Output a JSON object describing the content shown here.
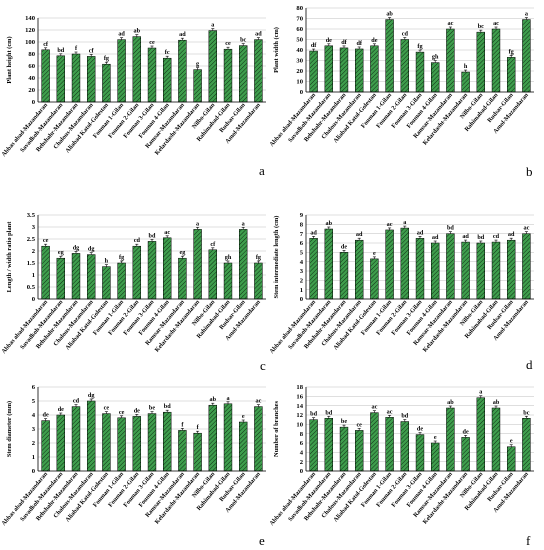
{
  "chart_data": [
    {
      "panel": "a",
      "type": "bar",
      "ylabel": "Plant height (cm)",
      "ylim": [
        0,
        140
      ],
      "yticks": [
        0,
        20,
        40,
        60,
        80,
        100,
        120,
        140
      ],
      "categories": [
        "Abbas abad-Mazandaran",
        "Savadkoh-Mazandaran",
        "Behshahr-Mazandaran",
        "Chalous-Mazandaran",
        "Aliabad Katol-Golestan",
        "Fouman 1-Gilan",
        "Fouman 2-Gilan",
        "Fouman 3-Gilan",
        "Fouman 4-Gilan",
        "Ramsar-Mazandaran",
        "Kelardasht-Mazandaran",
        "Nilbo-Gilan",
        "Rahimabad-Gilan",
        "Rudsar-Gilan",
        "Amol-Mazandaran"
      ],
      "values": [
        87,
        77,
        80,
        76,
        63,
        104,
        109,
        90,
        73,
        103,
        54,
        119,
        88,
        94,
        104
      ],
      "labels": [
        "cf",
        "bd",
        "f",
        "cf",
        "fg",
        "ad",
        "ab",
        "ce",
        "fc",
        "ad",
        "g",
        "a",
        "ce",
        "bc",
        "ad"
      ]
    },
    {
      "panel": "b",
      "type": "bar",
      "ylabel": "Plant width (cm)",
      "ylim": [
        0,
        80
      ],
      "yticks": [
        0,
        10,
        20,
        30,
        40,
        50,
        60,
        70,
        80
      ],
      "categories": [
        "Abbas abad-Mazandaran",
        "Savadkoh-Mazandaran",
        "Behshahr-Mazandaran",
        "Chalous-Mazandaran",
        "Aliabad Katol-Golestan",
        "Fouman 1-Gilan",
        "Fouman 2-Gilan",
        "Fouman 3-Gilan",
        "Fouman 4-Gilan",
        "Ramsar-Mazandaran",
        "Kelardasht-Mazandaran",
        "Nilbo-Gilan",
        "Rahimabad-Gilan",
        "Rudsar-Gilan",
        "Amol-Mazandaran"
      ],
      "values": [
        39,
        44,
        42,
        41,
        44,
        69,
        50,
        38,
        28,
        60,
        19,
        57,
        60,
        33,
        69
      ],
      "labels": [
        "df",
        "de",
        "df",
        "df",
        "de",
        "ab",
        "cd",
        "fg",
        "gh",
        "ac",
        "h",
        "bc",
        "ac",
        "fg",
        "a"
      ]
    },
    {
      "panel": "c",
      "type": "bar",
      "ylabel": "Length / width ratio plant",
      "ylim": [
        0,
        3.5
      ],
      "yticks": [
        0,
        0.5,
        1,
        1.5,
        2,
        2.5,
        3,
        3.5
      ],
      "categories": [
        "Abbas abad-Mazandaran",
        "Savadkoh-Mazandaran",
        "Behshahr-Mazandaran",
        "Chalous-Mazandaran",
        "Aliabad Katol-Golestan",
        "Fouman 1-Gilan",
        "Fouman 2-Gilan",
        "Fouman 3-Gilan",
        "Fouman 4-Gilan",
        "Ramsar-Mazandaran",
        "Kelardasht-Mazandaran",
        "Nilbo-Gilan",
        "Rahimabad-Gilan",
        "Rudsar-Gilan",
        "Amol-Mazandaran"
      ],
      "values": [
        2.2,
        1.7,
        1.9,
        1.85,
        1.35,
        1.5,
        2.2,
        2.4,
        2.55,
        1.7,
        2.9,
        2.05,
        1.5,
        2.9,
        1.5
      ],
      "labels": [
        "ce",
        "eg",
        "dg",
        "dg",
        "h",
        "fg",
        "cd",
        "bd",
        "ac",
        "eg",
        "a",
        "cf",
        "gh",
        "a",
        "fg"
      ]
    },
    {
      "panel": "d",
      "type": "bar",
      "ylabel": "Stem intermediate length (cm)",
      "ylim": [
        0,
        9
      ],
      "yticks": [
        0,
        1,
        2,
        3,
        4,
        5,
        6,
        7,
        8,
        9
      ],
      "categories": [
        "Abbas abad-Mazandaran",
        "Savadkoh-Mazandaran",
        "Behshahr-Mazandaran",
        "Chalous-Mazandaran",
        "Aliabad Katol-Golestan",
        "Fouman 1-Gilan",
        "Fouman 2-Gilan",
        "Fouman 3-Gilan",
        "Fouman 4-Gilan",
        "Ramsar-Mazandaran",
        "Kelardasht-Mazandaran",
        "Nilbo-Gilan",
        "Rahimabad-Gilan",
        "Rudsar-Gilan",
        "Amol-Mazandaran"
      ],
      "values": [
        6.5,
        7.5,
        5.0,
        6.3,
        4.3,
        7.4,
        7.6,
        6.5,
        6.0,
        7.0,
        6.1,
        6.0,
        6.1,
        6.3,
        7.0
      ],
      "labels": [
        "ad",
        "ab",
        "de",
        "ad",
        "e",
        "ac",
        "a",
        "ad",
        "ad",
        "bd",
        "ad",
        "bd",
        "cd",
        "ad",
        "ac"
      ]
    },
    {
      "panel": "e",
      "type": "bar",
      "ylabel": "Stem diameter (mm)",
      "ylim": [
        0,
        6
      ],
      "yticks": [
        0,
        1,
        2,
        3,
        4,
        5,
        6
      ],
      "categories": [
        "Abbas abad-Mazandaran",
        "Savadkoh-Mazandaran",
        "Behshahr-Mazandaran",
        "Chalous-Mazandaran",
        "Aliabad Katol-Golestan",
        "Fouman 1-Gilan",
        "Fouman 2-Gilan",
        "Fouman 3-Gilan",
        "Fouman 4-Gilan",
        "Ramsar-Mazandaran",
        "Kelardasht-Mazandaran",
        "Nilbo-Gilan",
        "Rahimabad-Gilan",
        "Rudsar-Gilan",
        "Amol-Mazandaran"
      ],
      "values": [
        3.6,
        4.0,
        4.6,
        5.0,
        4.1,
        3.8,
        3.9,
        4.1,
        4.2,
        2.9,
        2.7,
        4.7,
        4.8,
        3.5,
        4.6
      ],
      "labels": [
        "de",
        "de",
        "cd",
        "dg",
        "ce",
        "ce",
        "de",
        "be",
        "bd",
        "f",
        "f",
        "ab",
        "a",
        "e",
        "ac"
      ]
    },
    {
      "panel": "f",
      "type": "bar",
      "ylabel": "Number of branches",
      "ylim": [
        0,
        18
      ],
      "yticks": [
        0,
        2,
        4,
        6,
        8,
        10,
        12,
        14,
        16,
        18
      ],
      "categories": [
        "Abbas abad-Mazandaran",
        "Savadkoh-Mazandaran",
        "Behshahr-Mazandaran",
        "Chalous-Mazandaran",
        "Aliabad Katol-Golestan",
        "Fouman 1-Gilan",
        "Fouman 2-Gilan",
        "Fouman 3-Gilan",
        "Fouman 4-Gilan",
        "Ramsar-Mazandaran",
        "Kelardasht-Mazandaran",
        "Nilbo-Gilan",
        "Rahimabad-Gilan",
        "Rudsar-Gilan",
        "Amol-Mazandaran"
      ],
      "values": [
        11,
        11.3,
        9.4,
        8.7,
        12.5,
        11.5,
        10.6,
        7.8,
        6.0,
        13.5,
        7.2,
        15.7,
        13.5,
        5.2,
        11.3
      ],
      "labels": [
        "bd",
        "bd",
        "be",
        "ce",
        "ac",
        "ac",
        "bd",
        "de",
        "e",
        "ab",
        "de",
        "a",
        "ab",
        "e",
        "bc"
      ]
    }
  ],
  "colors": {
    "bar_fill": "#3f9e4d",
    "hatch_line": "#0e2e14",
    "grid": "#bfbfbf"
  }
}
